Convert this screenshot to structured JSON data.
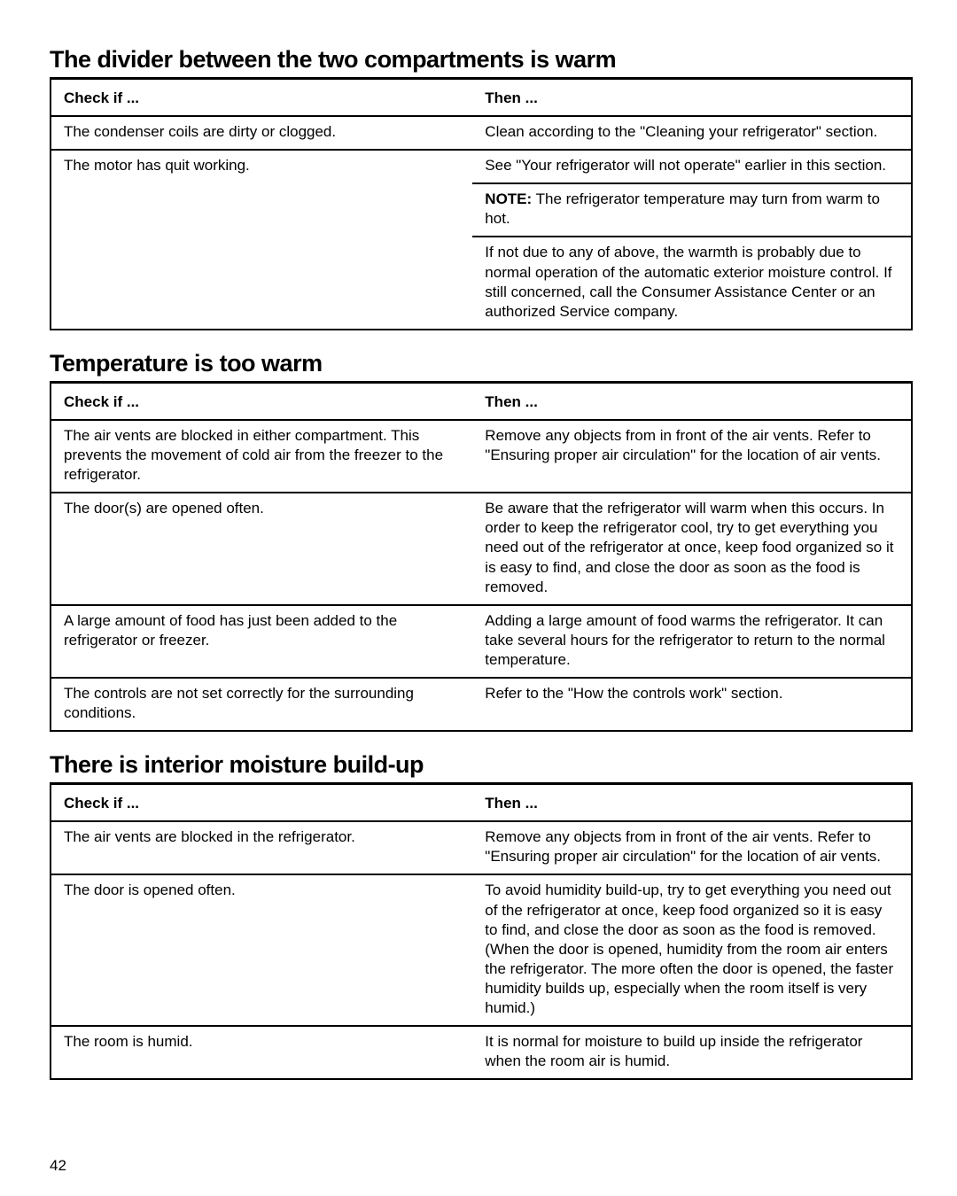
{
  "page_number": "42",
  "sections": [
    {
      "title": "The divider between the two compartments is warm",
      "header_left": "Check if ...",
      "header_right": "Then ...",
      "rows": [
        {
          "left": "The condenser coils are dirty or clogged.",
          "right": "Clean according to the \"Cleaning your refrigerator\" section.",
          "left_div": true,
          "right_div": true
        },
        {
          "left": "The motor has quit working.",
          "right": "See \"Your refrigerator will not operate\" earlier in this section.",
          "left_div": true,
          "right_div": true
        },
        {
          "left": "",
          "right_prefix_bold": "NOTE:",
          "right": " The refrigerator temperature may turn from warm to hot.",
          "left_div": false,
          "right_div": true
        },
        {
          "left": "",
          "right": "If not due to any of above, the warmth is probably due to normal operation of the automatic exterior moisture control. If still concerned, call the Consumer Assistance Center or an authorized Service company.",
          "left_div": false,
          "right_div": true
        }
      ]
    },
    {
      "title": "Temperature is too warm",
      "header_left": "Check if ...",
      "header_right": "Then ...",
      "rows": [
        {
          "left": "The air vents are blocked in either compartment. This prevents the movement of cold air from the freezer to the refrigerator.",
          "right": "Remove any objects from in front of the air vents. Refer to \"Ensuring proper air circulation\" for the location of air vents.",
          "left_div": true,
          "right_div": true
        },
        {
          "left": "The door(s) are opened often.",
          "right": "Be aware that the refrigerator will warm when this occurs. In order to keep the refrigerator cool, try to get everything you need out of the refrigerator at once, keep food organized so it is easy to find, and close the door as soon as the food is removed.",
          "left_div": true,
          "right_div": true
        },
        {
          "left": "A large amount of food has just been added to the refrigerator or freezer.",
          "right": "Adding a large amount of food warms the refrigerator. It can take several hours for the refrigerator to return to the normal temperature.",
          "left_div": true,
          "right_div": true
        },
        {
          "left": "The controls are not set correctly for the surrounding conditions.",
          "right": "Refer to the \"How the controls work\" section.",
          "left_div": true,
          "right_div": true
        }
      ]
    },
    {
      "title": "There is interior moisture build-up",
      "header_left": "Check if ...",
      "header_right": "Then ...",
      "rows": [
        {
          "left": "The air vents are blocked in the refrigerator.",
          "right": "Remove any objects from in front of the air vents. Refer to \"Ensuring proper air circulation\" for the location of air vents.",
          "left_div": true,
          "right_div": true
        },
        {
          "left": "The door is opened often.",
          "right": "To avoid humidity build-up, try to get everything you need out of the refrigerator at once, keep food organized so it is easy to find, and close the door as soon as the food is removed. (When the door is opened, humidity from the room air enters the refrigerator. The more often the door is opened, the faster humidity builds up, especially when the room itself is very humid.)",
          "left_div": true,
          "right_div": true
        },
        {
          "left": "The room is humid.",
          "right": "It is normal for moisture to build up inside the refrigerator when the room air is humid.",
          "left_div": true,
          "right_div": true
        }
      ]
    }
  ]
}
